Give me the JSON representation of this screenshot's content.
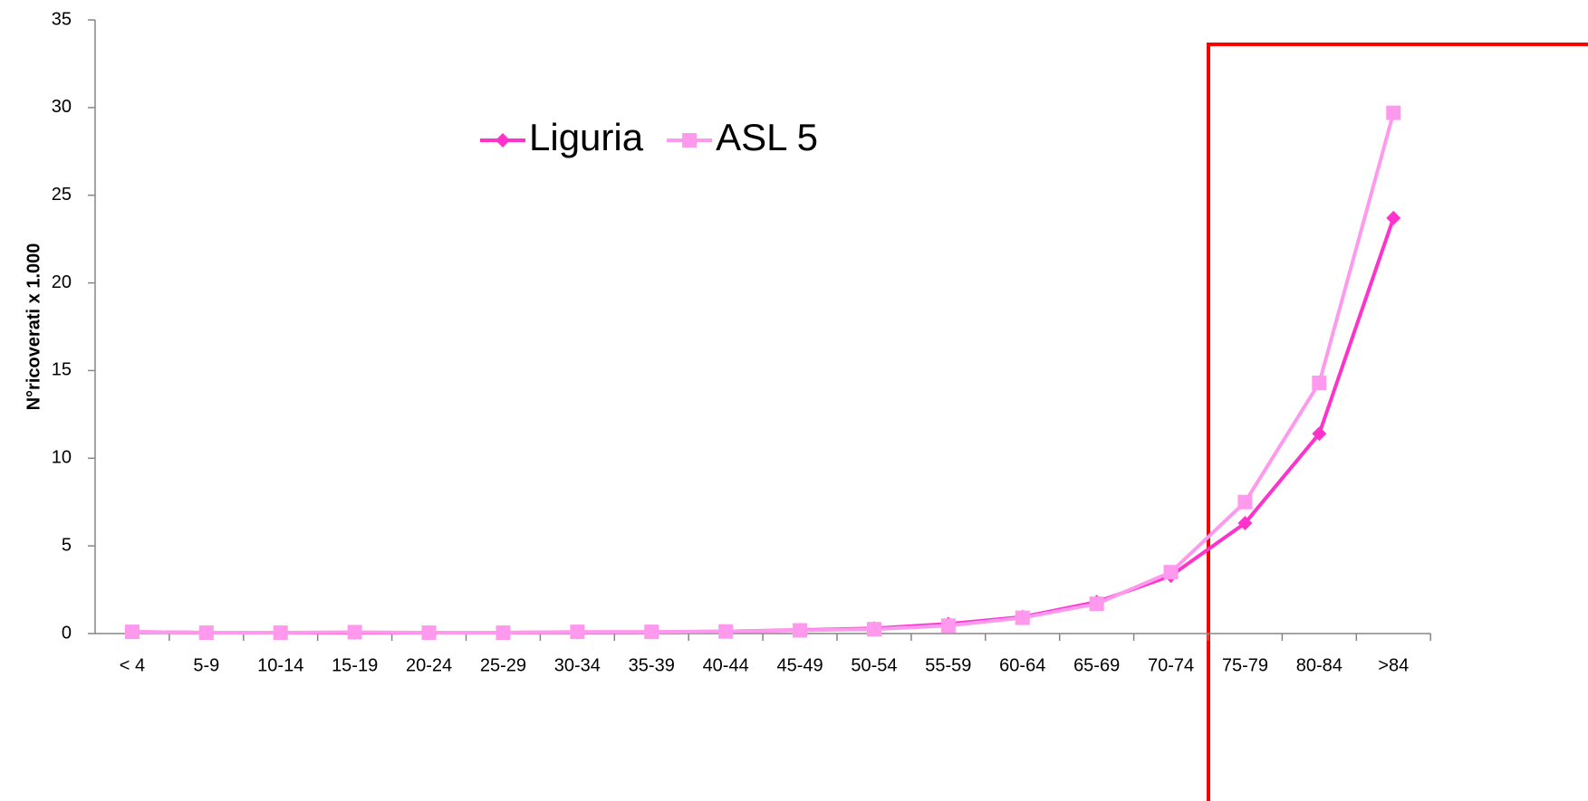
{
  "chart_data": {
    "type": "line",
    "y_label": "N°ricoverati x 1.000",
    "categories": [
      "< 4",
      "5-9",
      "10-14",
      "15-19",
      "20-24",
      "25-29",
      "30-34",
      "35-39",
      "40-44",
      "45-49",
      "50-54",
      "55-59",
      "60-64",
      "65-69",
      "70-74",
      "75-79",
      "80-84",
      ">84"
    ],
    "series": [
      {
        "name": "Liguria",
        "color": "#ff33cc",
        "marker": "diamond",
        "values": [
          0.1,
          0.05,
          0.05,
          0.05,
          0.05,
          0.05,
          0.08,
          0.08,
          0.12,
          0.2,
          0.3,
          0.55,
          0.95,
          1.8,
          3.3,
          6.3,
          11.4,
          23.7
        ]
      },
      {
        "name": "ASL 5",
        "color": "#ff99ee",
        "marker": "square",
        "values": [
          0.1,
          0.05,
          0.05,
          0.08,
          0.05,
          0.05,
          0.1,
          0.1,
          0.12,
          0.18,
          0.25,
          0.45,
          0.9,
          1.7,
          3.5,
          7.5,
          14.3,
          29.7
        ]
      }
    ],
    "ylim": [
      0,
      35
    ],
    "yticks": [
      0,
      5,
      10,
      15,
      20,
      25,
      30,
      35
    ],
    "grid": false
  }
}
